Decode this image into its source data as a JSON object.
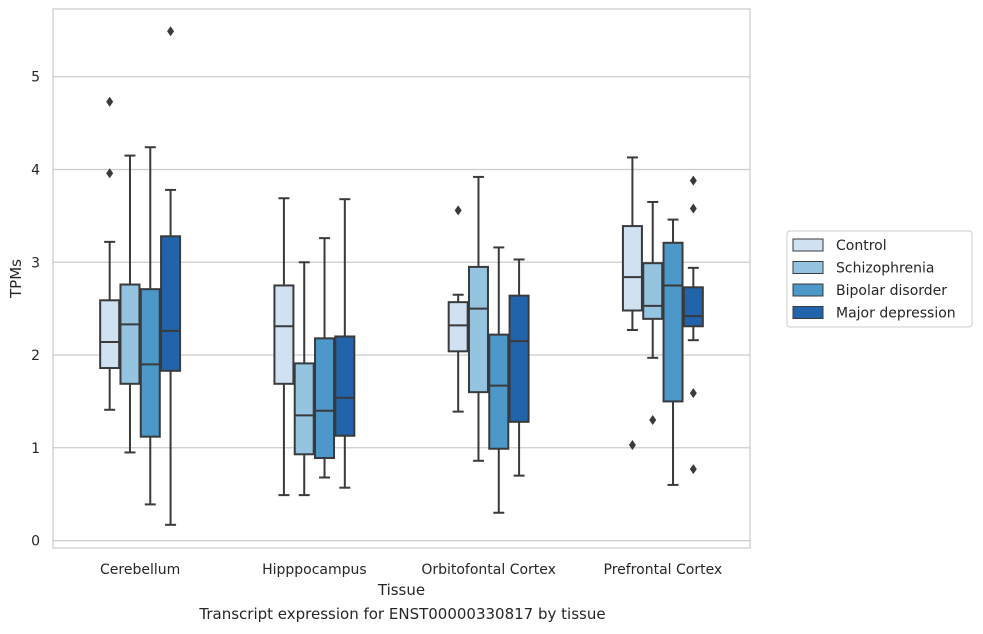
{
  "caption": "Transcript expression for ENST00000330817 by tissue",
  "chart_data": {
    "type": "box",
    "xlabel": "Tissue",
    "ylabel": "TPMs",
    "ylim": [
      -0.08,
      5.73
    ],
    "yticks": [
      0,
      1,
      2,
      3,
      4,
      5
    ],
    "grid": "horizontal",
    "legend_position": "right",
    "categories": [
      "Cerebellum",
      "Hipppocampus",
      "Orbitofontal Cortex",
      "Prefrontal Cortex"
    ],
    "series": [
      {
        "name": "Control",
        "color": "#d0e1f2",
        "boxes": [
          {
            "whislo": 1.41,
            "q1": 1.86,
            "med": 2.14,
            "q3": 2.59,
            "whishi": 3.22,
            "fliers": [
              3.96,
              4.73
            ]
          },
          {
            "whislo": 0.49,
            "q1": 1.69,
            "med": 2.31,
            "q3": 2.75,
            "whishi": 3.69,
            "fliers": []
          },
          {
            "whislo": 1.39,
            "q1": 2.04,
            "med": 2.32,
            "q3": 2.57,
            "whishi": 2.65,
            "fliers": [
              3.56
            ]
          },
          {
            "whislo": 2.27,
            "q1": 2.48,
            "med": 2.84,
            "q3": 3.39,
            "whishi": 4.13,
            "fliers": [
              1.03
            ]
          }
        ]
      },
      {
        "name": "Schizophrenia",
        "color": "#94c4df",
        "boxes": [
          {
            "whislo": 0.95,
            "q1": 1.69,
            "med": 2.33,
            "q3": 2.76,
            "whishi": 4.15,
            "fliers": []
          },
          {
            "whislo": 0.49,
            "q1": 0.93,
            "med": 1.35,
            "q3": 1.91,
            "whishi": 3.0,
            "fliers": []
          },
          {
            "whislo": 0.86,
            "q1": 1.6,
            "med": 2.5,
            "q3": 2.95,
            "whishi": 3.92,
            "fliers": []
          },
          {
            "whislo": 1.97,
            "q1": 2.39,
            "med": 2.53,
            "q3": 2.99,
            "whishi": 3.65,
            "fliers": [
              1.3
            ]
          }
        ]
      },
      {
        "name": "Bipolar disorder",
        "color": "#4b98c9",
        "boxes": [
          {
            "whislo": 0.39,
            "q1": 1.12,
            "med": 1.9,
            "q3": 2.71,
            "whishi": 4.24,
            "fliers": []
          },
          {
            "whislo": 0.68,
            "q1": 0.89,
            "med": 1.4,
            "q3": 2.18,
            "whishi": 3.26,
            "fliers": []
          },
          {
            "whislo": 0.3,
            "q1": 0.99,
            "med": 1.67,
            "q3": 2.22,
            "whishi": 3.16,
            "fliers": []
          },
          {
            "whislo": 0.6,
            "q1": 1.5,
            "med": 2.75,
            "q3": 3.21,
            "whishi": 3.46,
            "fliers": []
          }
        ]
      },
      {
        "name": "Major depression",
        "color": "#2164ab",
        "boxes": [
          {
            "whislo": 0.17,
            "q1": 1.83,
            "med": 2.26,
            "q3": 3.28,
            "whishi": 3.78,
            "fliers": [
              5.49
            ]
          },
          {
            "whislo": 0.57,
            "q1": 1.13,
            "med": 1.54,
            "q3": 2.2,
            "whishi": 3.68,
            "fliers": []
          },
          {
            "whislo": 0.7,
            "q1": 1.28,
            "med": 2.15,
            "q3": 2.64,
            "whishi": 3.03,
            "fliers": []
          },
          {
            "whislo": 2.16,
            "q1": 2.31,
            "med": 2.42,
            "q3": 2.73,
            "whishi": 2.94,
            "fliers": [
              0.77,
              1.59,
              3.58,
              3.88
            ]
          }
        ]
      }
    ]
  }
}
